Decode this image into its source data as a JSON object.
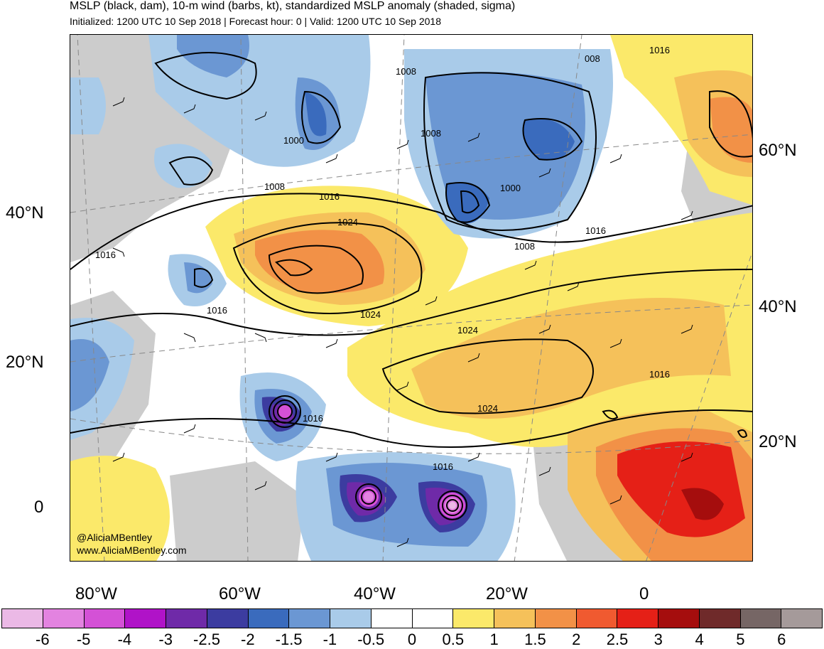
{
  "header": {
    "title": "MSLP (black, dam), 10-m wind (barbs, kt), standardized MSLP anomaly (shaded, sigma)",
    "subtitle": "Initialized: 1200 UTC 10 Sep 2018 | Forecast hour: 0 | Valid: 1200 UTC 10 Sep 2018"
  },
  "map": {
    "lat_labels_left": [
      "40°N",
      "20°N",
      "0"
    ],
    "lat_labels_right": [
      "60°N",
      "40°N",
      "20°N"
    ],
    "lon_labels": [
      "80°W",
      "60°W",
      "40°W",
      "20°W",
      "0"
    ],
    "isobar_labels": [
      "1008",
      "008",
      "1016",
      "1000",
      "1008",
      "1008",
      "1016",
      "1024",
      "1000",
      "1016",
      "1008",
      "1016",
      "1016",
      "1024",
      "1024",
      "1024",
      "1016",
      "1016",
      "1016"
    ],
    "credit_handle": "@AliciaMBentley",
    "credit_url": "www.AliciaMBentley.com"
  },
  "colorbar": {
    "labels": [
      "-6",
      "-5",
      "-4",
      "-3",
      "-2.5",
      "-2",
      "-1.5",
      "-1",
      "-0.5",
      "0",
      "0.5",
      "1",
      "1.5",
      "2",
      "2.5",
      "3",
      "4",
      "5",
      "6"
    ],
    "colors": [
      "#ebb9e6",
      "#e383e0",
      "#d451d6",
      "#b013c8",
      "#6f2aa8",
      "#3c3ca0",
      "#3a6bbd",
      "#6b97d3",
      "#a9cbe9",
      "#ffffff",
      "#ffffff",
      "#fbe96a",
      "#f5c15a",
      "#f29147",
      "#f05a30",
      "#e52017",
      "#a50d0d",
      "#6f2a2a",
      "#766665",
      "#a59a9a"
    ]
  }
}
